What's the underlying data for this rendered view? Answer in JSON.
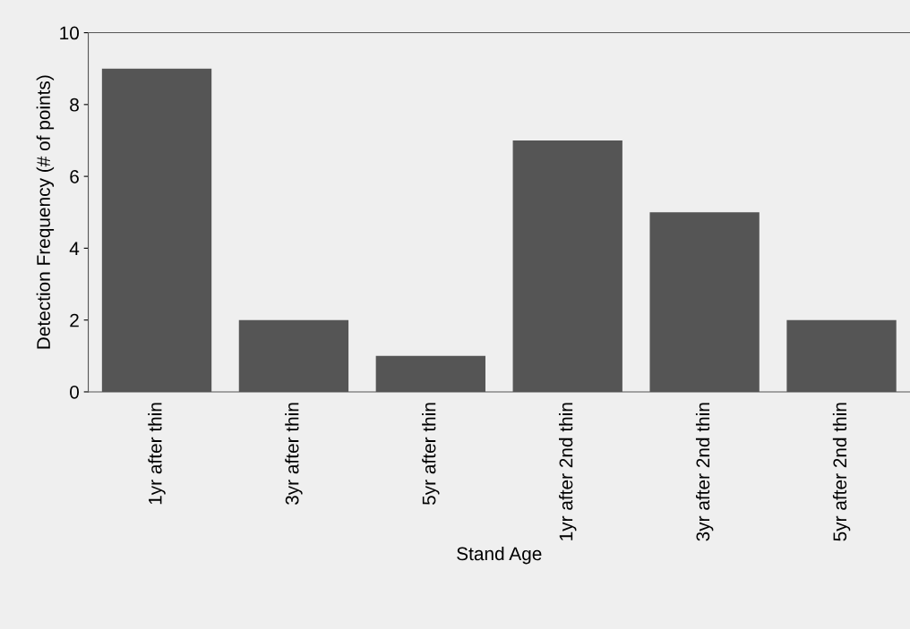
{
  "chart_data": {
    "type": "bar",
    "xlabel": "Stand Age",
    "ylabel": "Detection Frequency (# of points)",
    "categories": [
      "1yr after thin",
      "3yr after thin",
      "5yr after thin",
      "1yr after 2nd thin",
      "3yr after 2nd thin",
      "5yr after 2nd thin"
    ],
    "values": [
      9,
      2,
      1,
      7,
      5,
      2
    ],
    "color": "#555555",
    "ylim": [
      0,
      10
    ],
    "yticks": [
      0,
      2,
      4,
      6,
      8,
      10
    ],
    "grid": false,
    "legend": false
  }
}
